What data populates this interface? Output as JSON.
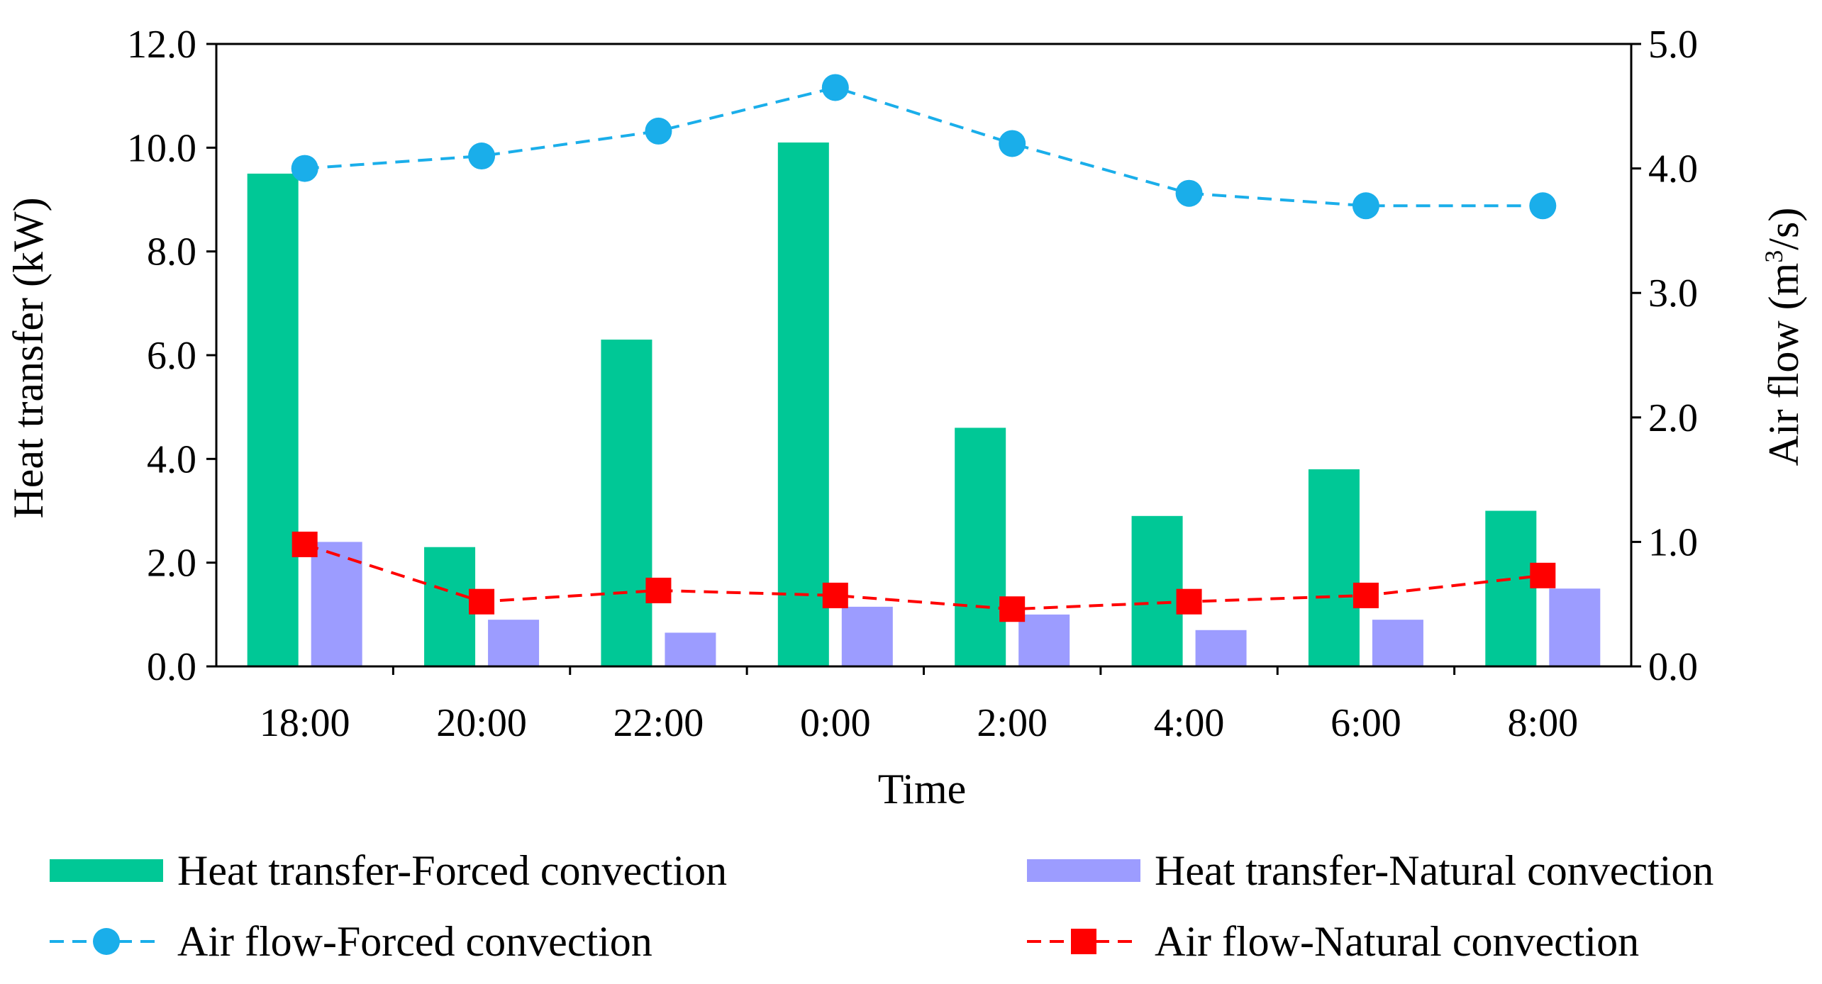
{
  "chart_data": {
    "type": "bar+line",
    "categories": [
      "18:00",
      "20:00",
      "22:00",
      "0:00",
      "2:00",
      "4:00",
      "6:00",
      "8:00"
    ],
    "xlabel": "Time",
    "ylabel_left": "Heat transfer (kW)",
    "ylabel_right_prefix": "Air flow (m",
    "ylabel_right_sup": "3",
    "ylabel_right_suffix": "/s)",
    "ylim_left": [
      0,
      12
    ],
    "ylim_right": [
      0,
      5
    ],
    "yticks_left": [
      "0.0",
      "2.0",
      "4.0",
      "6.0",
      "8.0",
      "10.0",
      "12.0"
    ],
    "yticks_right": [
      "0.0",
      "1.0",
      "2.0",
      "3.0",
      "4.0",
      "5.0"
    ],
    "grid": false,
    "series": [
      {
        "name": "Heat transfer-Forced convection",
        "kind": "bar",
        "axis": "left",
        "color": "#00C896",
        "values": [
          9.5,
          2.3,
          6.3,
          10.1,
          4.6,
          2.9,
          3.8,
          3.0
        ]
      },
      {
        "name": "Heat transfer-Natural convection",
        "kind": "bar",
        "axis": "left",
        "color": "#9C9CFF",
        "values": [
          2.4,
          0.9,
          0.65,
          1.15,
          1.0,
          0.7,
          0.9,
          1.5
        ]
      },
      {
        "name": "Air flow-Forced convection",
        "kind": "line",
        "axis": "right",
        "color": "#1AAEEA",
        "marker": "circle",
        "dash": true,
        "values": [
          4.0,
          4.1,
          4.3,
          4.65,
          4.2,
          3.8,
          3.7,
          3.7
        ]
      },
      {
        "name": "Air flow-Natural convection",
        "kind": "line",
        "axis": "right",
        "color": "#FF0000",
        "marker": "square",
        "dash": true,
        "values": [
          0.98,
          0.52,
          0.61,
          0.57,
          0.46,
          0.52,
          0.57,
          0.73
        ]
      }
    ],
    "legend_position": "bottom"
  }
}
